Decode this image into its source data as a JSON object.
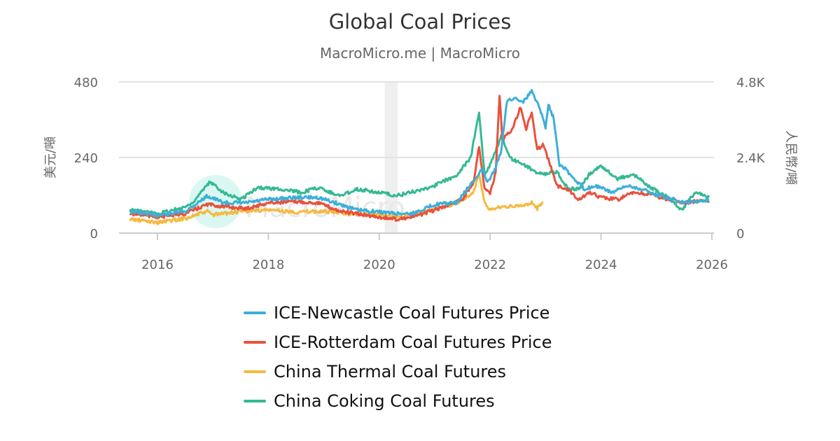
{
  "chart_data": {
    "type": "line",
    "title": "Global Coal Prices",
    "subtitle": "MacroMicro.me | MacroMicro",
    "watermark": "MacroMicro",
    "x_ticks": [
      "2016",
      "2018",
      "2020",
      "2022",
      "2024",
      "2026"
    ],
    "xlim": [
      2015.4,
      2026.0
    ],
    "y_left": {
      "label": "美元/噸",
      "ticks": [
        "0",
        "240",
        "480"
      ],
      "range": [
        0,
        480
      ]
    },
    "y_right": {
      "label": "人民幣/噸",
      "ticks": [
        "0",
        "2.4K",
        "4.8K"
      ],
      "range": [
        0,
        4800
      ]
    },
    "grid": true,
    "legend_position": "bottom",
    "shaded_periods": [
      [
        2020.1,
        2020.33
      ]
    ],
    "series": [
      {
        "name": "ICE-Newcastle Coal Futures Price",
        "color": "#3dafd9",
        "axis": "left",
        "x": [
          2015.5,
          2016.0,
          2016.5,
          2016.9,
          2017.2,
          2017.6,
          2018.0,
          2018.5,
          2018.9,
          2019.3,
          2019.6,
          2019.9,
          2020.3,
          2020.6,
          2021.0,
          2021.4,
          2021.6,
          2021.75,
          2021.85,
          2021.95,
          2022.1,
          2022.2,
          2022.3,
          2022.45,
          2022.6,
          2022.75,
          2022.9,
          2023.0,
          2023.05,
          2023.15,
          2023.25,
          2023.35,
          2023.5,
          2023.7,
          2023.9,
          2024.2,
          2024.5,
          2024.8,
          2025.0,
          2025.3,
          2025.5,
          2025.8,
          2025.95
        ],
        "y": [
          69,
          56,
          69,
          118,
          96,
          96,
          107,
          113,
          113,
          91,
          73,
          69,
          62,
          62,
          91,
          96,
          144,
          173,
          207,
          158,
          207,
          262,
          418,
          429,
          418,
          451,
          396,
          333,
          411,
          362,
          218,
          207,
          173,
          140,
          151,
          129,
          151,
          136,
          122,
          107,
          96,
          102,
          107
        ]
      },
      {
        "name": "ICE-Rotterdam Coal Futures Price",
        "color": "#e8513d",
        "axis": "left",
        "x": [
          2015.5,
          2016.0,
          2016.5,
          2016.9,
          2017.2,
          2017.6,
          2018.0,
          2018.5,
          2018.9,
          2019.3,
          2019.7,
          2020.3,
          2020.6,
          2021.0,
          2021.5,
          2021.7,
          2021.8,
          2021.9,
          2022.0,
          2022.1,
          2022.17,
          2022.22,
          2022.4,
          2022.55,
          2022.65,
          2022.75,
          2022.85,
          2022.95,
          2023.1,
          2023.2,
          2023.4,
          2023.6,
          2023.8,
          2024.0,
          2024.3,
          2024.6,
          2024.9,
          2025.2,
          2025.5,
          2025.7,
          2025.95
        ],
        "y": [
          62,
          51,
          62,
          91,
          84,
          78,
          96,
          100,
          96,
          69,
          58,
          44,
          51,
          73,
          107,
          162,
          278,
          140,
          129,
          189,
          440,
          296,
          329,
          402,
          329,
          384,
          262,
          284,
          207,
          151,
          140,
          107,
          129,
          113,
          107,
          129,
          122,
          107,
          96,
          100,
          102
        ]
      },
      {
        "name": "China Thermal Coal Futures",
        "color": "#f5b93f",
        "axis": "right",
        "x": [
          2015.5,
          2016.0,
          2016.5,
          2016.9,
          2017.0,
          2017.5,
          2018.0,
          2018.5,
          2019.0,
          2019.5,
          2020.0,
          2020.3,
          2020.7,
          2021.0,
          2021.4,
          2021.7,
          2021.8,
          2021.9,
          2022.0,
          2022.2,
          2022.5,
          2022.75,
          2022.85,
          2022.95
        ],
        "y": [
          444,
          333,
          467,
          689,
          578,
          689,
          733,
          667,
          689,
          622,
          578,
          511,
          622,
          733,
          956,
          1289,
          1844,
          956,
          733,
          844,
          844,
          956,
          778,
          1000
        ]
      },
      {
        "name": "China Coking Coal Futures",
        "color": "#35b994",
        "axis": "right",
        "x": [
          2015.5,
          2016.0,
          2016.4,
          2016.6,
          2016.95,
          2017.2,
          2017.5,
          2017.8,
          2018.2,
          2018.6,
          2018.9,
          2019.3,
          2019.6,
          2020.0,
          2020.3,
          2020.7,
          2021.0,
          2021.4,
          2021.65,
          2021.8,
          2021.9,
          2022.0,
          2022.2,
          2022.35,
          2022.6,
          2022.8,
          2023.0,
          2023.2,
          2023.4,
          2023.6,
          2023.8,
          2024.0,
          2024.3,
          2024.6,
          2024.9,
          2025.2,
          2025.45,
          2025.7,
          2025.95
        ],
        "y": [
          733,
          622,
          778,
          911,
          1622,
          1289,
          1067,
          1444,
          1400,
          1289,
          1444,
          1178,
          1400,
          1289,
          1178,
          1355,
          1511,
          1844,
          2400,
          3844,
          1844,
          2178,
          3067,
          2400,
          2178,
          1956,
          1889,
          1956,
          1400,
          1400,
          1889,
          2133,
          1733,
          1844,
          1444,
          1133,
          733,
          1289,
          1133
        ]
      }
    ]
  }
}
